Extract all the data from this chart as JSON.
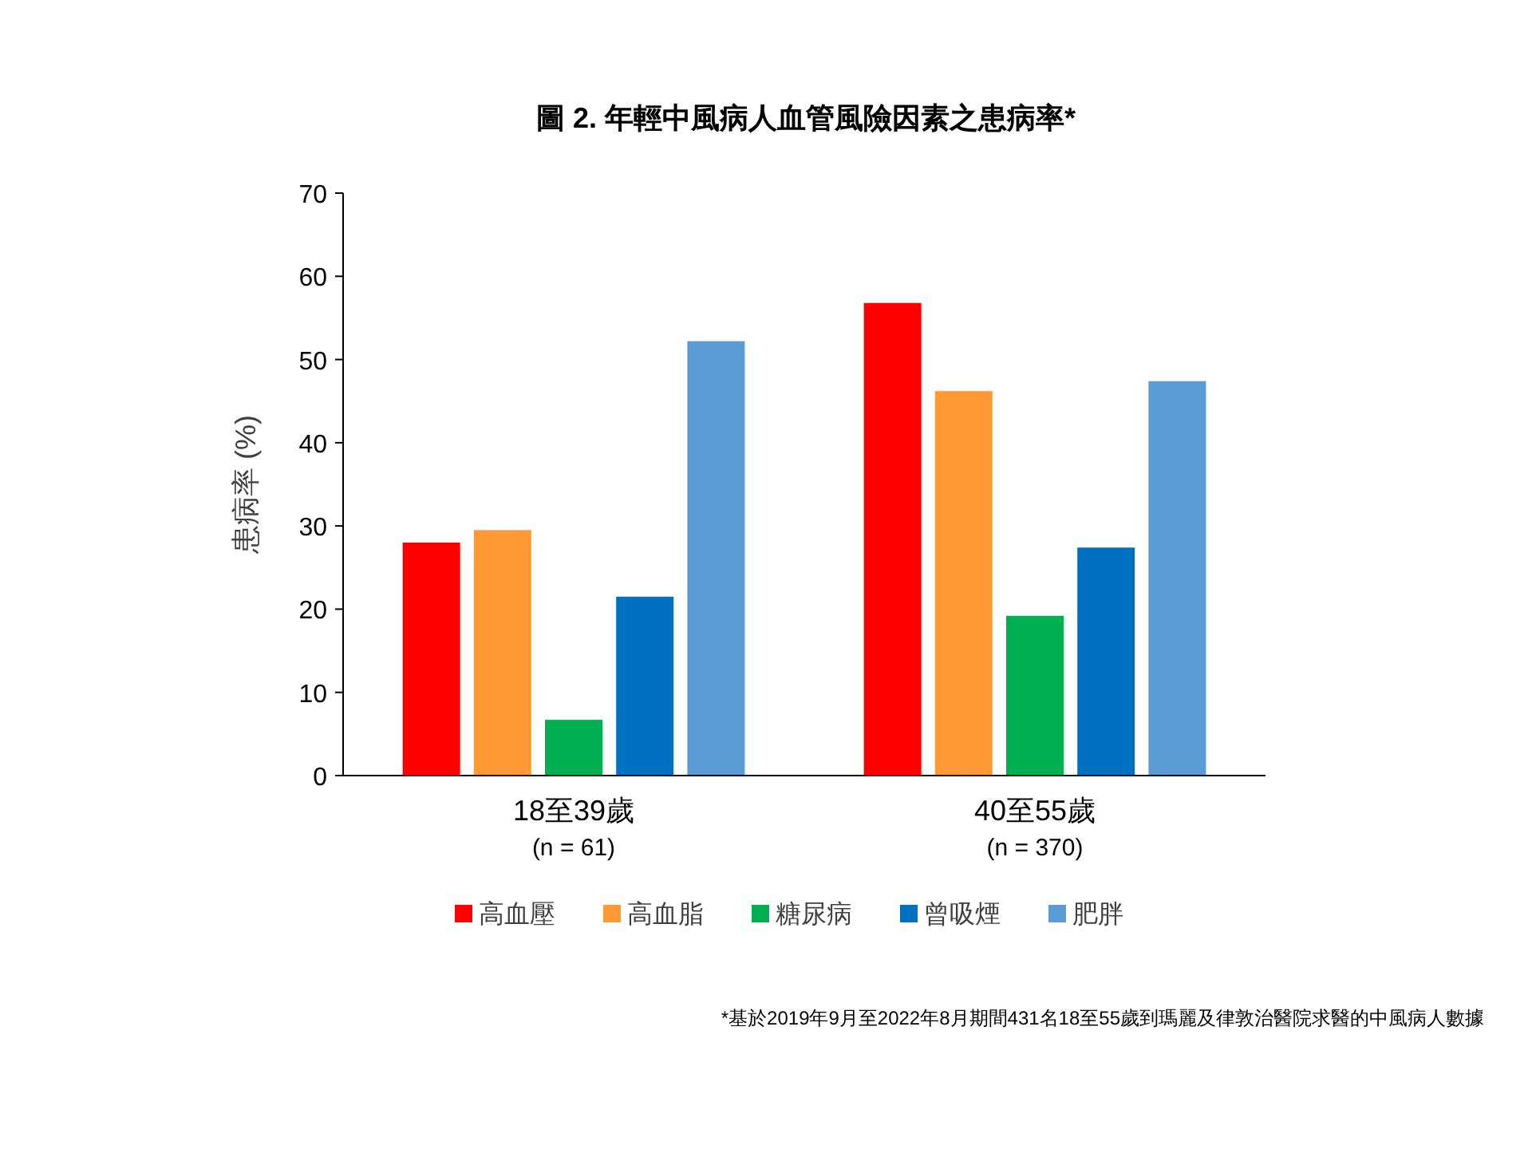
{
  "chart_data": {
    "type": "bar",
    "title": "圖 2. 年輕中風病人血管風險因素之患病率*",
    "ylabel": "患病率 (%)",
    "categories": [
      "18至39歲\n(n = 61)",
      "40至55歲\n(n = 370)"
    ],
    "series": [
      {
        "name": "高血壓",
        "color": "#ff0000",
        "values": [
          28.0,
          56.8
        ]
      },
      {
        "name": "高血脂",
        "color": "#ff9933",
        "values": [
          29.5,
          46.2
        ]
      },
      {
        "name": "糖尿病",
        "color": "#00b050",
        "values": [
          6.7,
          19.2
        ]
      },
      {
        "name": "曾吸煙",
        "color": "#0070c0",
        "values": [
          21.5,
          27.4
        ]
      },
      {
        "name": "肥胖",
        "color": "#5b9bd5",
        "values": [
          52.2,
          47.4
        ]
      }
    ],
    "ylim": [
      0,
      70
    ],
    "yticks": [
      0,
      10,
      20,
      30,
      40,
      50,
      60,
      70
    ],
    "grid": false,
    "legend": "bottom",
    "annotations": [
      "*基於2019年9月至2022年8月期間431名18至55歲到瑪麗及律敦治醫院求醫的中風病人數據"
    ]
  }
}
